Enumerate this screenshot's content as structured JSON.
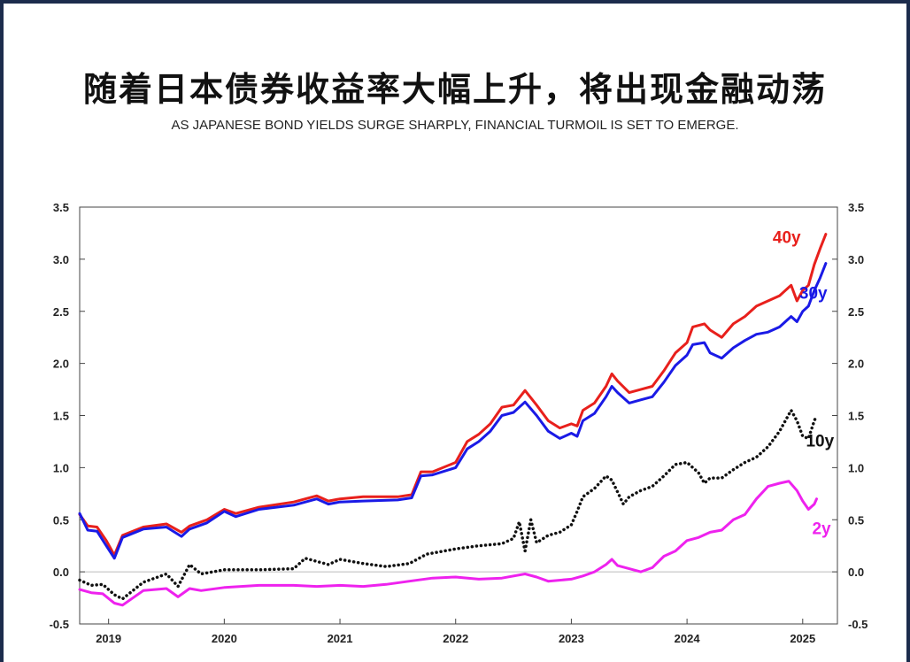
{
  "page": {
    "title": "随着日本债券收益率大幅上升，将出现金融动荡",
    "subtitle": "AS JAPANESE BOND YIELDS SURGE SHARPLY, FINANCIAL TURMOIL IS SET TO EMERGE."
  },
  "chart_data": {
    "type": "line",
    "title": "",
    "xlabel": "",
    "ylabel": "",
    "xlim": [
      2018.75,
      2025.3
    ],
    "ylim": [
      -0.5,
      3.5
    ],
    "x_ticks": [
      2019,
      2020,
      2021,
      2022,
      2023,
      2024,
      2025
    ],
    "x_tick_labels": [
      "2019",
      "2020",
      "2021",
      "2022",
      "2023",
      "2024",
      "2025"
    ],
    "y_ticks": [
      -0.5,
      0.0,
      0.5,
      1.0,
      1.5,
      2.0,
      2.5,
      3.0,
      3.5
    ],
    "y_tick_labels": [
      "-0.5",
      "0.0",
      "0.5",
      "1.0",
      "1.5",
      "2.0",
      "2.5",
      "3.0",
      "3.5"
    ],
    "dual_y_axis": true,
    "zero_line": true,
    "grid": false,
    "legend": "labels at line ends",
    "series": [
      {
        "name": "40y",
        "color": "#e8201c",
        "style": "solid",
        "points": [
          [
            2018.75,
            0.55
          ],
          [
            2018.82,
            0.44
          ],
          [
            2018.9,
            0.43
          ],
          [
            2018.98,
            0.3
          ],
          [
            2019.05,
            0.16
          ],
          [
            2019.12,
            0.35
          ],
          [
            2019.3,
            0.43
          ],
          [
            2019.5,
            0.46
          ],
          [
            2019.63,
            0.38
          ],
          [
            2019.7,
            0.44
          ],
          [
            2019.85,
            0.5
          ],
          [
            2020.0,
            0.6
          ],
          [
            2020.1,
            0.56
          ],
          [
            2020.3,
            0.62
          ],
          [
            2020.6,
            0.67
          ],
          [
            2020.8,
            0.73
          ],
          [
            2020.9,
            0.68
          ],
          [
            2021.0,
            0.7
          ],
          [
            2021.2,
            0.72
          ],
          [
            2021.5,
            0.72
          ],
          [
            2021.62,
            0.74
          ],
          [
            2021.7,
            0.96
          ],
          [
            2021.8,
            0.96
          ],
          [
            2022.0,
            1.05
          ],
          [
            2022.1,
            1.25
          ],
          [
            2022.2,
            1.32
          ],
          [
            2022.3,
            1.42
          ],
          [
            2022.4,
            1.58
          ],
          [
            2022.5,
            1.6
          ],
          [
            2022.6,
            1.74
          ],
          [
            2022.7,
            1.6
          ],
          [
            2022.8,
            1.45
          ],
          [
            2022.9,
            1.38
          ],
          [
            2023.0,
            1.42
          ],
          [
            2023.05,
            1.4
          ],
          [
            2023.1,
            1.55
          ],
          [
            2023.2,
            1.62
          ],
          [
            2023.3,
            1.78
          ],
          [
            2023.35,
            1.9
          ],
          [
            2023.4,
            1.83
          ],
          [
            2023.5,
            1.72
          ],
          [
            2023.6,
            1.75
          ],
          [
            2023.7,
            1.78
          ],
          [
            2023.8,
            1.93
          ],
          [
            2023.9,
            2.1
          ],
          [
            2024.0,
            2.2
          ],
          [
            2024.05,
            2.35
          ],
          [
            2024.15,
            2.38
          ],
          [
            2024.2,
            2.32
          ],
          [
            2024.3,
            2.25
          ],
          [
            2024.4,
            2.38
          ],
          [
            2024.5,
            2.45
          ],
          [
            2024.6,
            2.55
          ],
          [
            2024.7,
            2.6
          ],
          [
            2024.8,
            2.65
          ],
          [
            2024.9,
            2.75
          ],
          [
            2024.95,
            2.6
          ],
          [
            2025.0,
            2.7
          ],
          [
            2025.05,
            2.75
          ],
          [
            2025.1,
            2.95
          ],
          [
            2025.15,
            3.1
          ],
          [
            2025.2,
            3.24
          ]
        ]
      },
      {
        "name": "30y",
        "color": "#1a1ae6",
        "style": "solid",
        "points": [
          [
            2018.75,
            0.56
          ],
          [
            2018.82,
            0.4
          ],
          [
            2018.9,
            0.39
          ],
          [
            2018.98,
            0.25
          ],
          [
            2019.05,
            0.13
          ],
          [
            2019.12,
            0.33
          ],
          [
            2019.3,
            0.41
          ],
          [
            2019.5,
            0.43
          ],
          [
            2019.63,
            0.34
          ],
          [
            2019.7,
            0.41
          ],
          [
            2019.85,
            0.47
          ],
          [
            2020.0,
            0.58
          ],
          [
            2020.1,
            0.53
          ],
          [
            2020.3,
            0.6
          ],
          [
            2020.6,
            0.64
          ],
          [
            2020.8,
            0.7
          ],
          [
            2020.9,
            0.65
          ],
          [
            2021.0,
            0.67
          ],
          [
            2021.2,
            0.68
          ],
          [
            2021.5,
            0.69
          ],
          [
            2021.62,
            0.71
          ],
          [
            2021.7,
            0.92
          ],
          [
            2021.8,
            0.93
          ],
          [
            2022.0,
            1.0
          ],
          [
            2022.1,
            1.18
          ],
          [
            2022.2,
            1.25
          ],
          [
            2022.3,
            1.35
          ],
          [
            2022.4,
            1.5
          ],
          [
            2022.5,
            1.53
          ],
          [
            2022.6,
            1.63
          ],
          [
            2022.7,
            1.5
          ],
          [
            2022.8,
            1.35
          ],
          [
            2022.9,
            1.28
          ],
          [
            2023.0,
            1.33
          ],
          [
            2023.05,
            1.3
          ],
          [
            2023.1,
            1.45
          ],
          [
            2023.2,
            1.52
          ],
          [
            2023.3,
            1.68
          ],
          [
            2023.35,
            1.78
          ],
          [
            2023.4,
            1.72
          ],
          [
            2023.5,
            1.62
          ],
          [
            2023.6,
            1.65
          ],
          [
            2023.7,
            1.68
          ],
          [
            2023.8,
            1.82
          ],
          [
            2023.9,
            1.98
          ],
          [
            2024.0,
            2.08
          ],
          [
            2024.05,
            2.18
          ],
          [
            2024.15,
            2.2
          ],
          [
            2024.2,
            2.1
          ],
          [
            2024.3,
            2.05
          ],
          [
            2024.4,
            2.15
          ],
          [
            2024.5,
            2.22
          ],
          [
            2024.6,
            2.28
          ],
          [
            2024.7,
            2.3
          ],
          [
            2024.8,
            2.35
          ],
          [
            2024.9,
            2.45
          ],
          [
            2024.95,
            2.4
          ],
          [
            2025.0,
            2.5
          ],
          [
            2025.05,
            2.55
          ],
          [
            2025.1,
            2.7
          ],
          [
            2025.15,
            2.82
          ],
          [
            2025.2,
            2.96
          ]
        ]
      },
      {
        "name": "10y",
        "color": "#111111",
        "style": "dotted",
        "points": [
          [
            2018.75,
            -0.08
          ],
          [
            2018.85,
            -0.13
          ],
          [
            2018.95,
            -0.12
          ],
          [
            2019.05,
            -0.22
          ],
          [
            2019.12,
            -0.26
          ],
          [
            2019.3,
            -0.1
          ],
          [
            2019.5,
            -0.02
          ],
          [
            2019.6,
            -0.14
          ],
          [
            2019.7,
            0.07
          ],
          [
            2019.8,
            -0.02
          ],
          [
            2020.0,
            0.02
          ],
          [
            2020.3,
            0.02
          ],
          [
            2020.6,
            0.03
          ],
          [
            2020.7,
            0.13
          ],
          [
            2020.9,
            0.07
          ],
          [
            2021.0,
            0.12
          ],
          [
            2021.2,
            0.08
          ],
          [
            2021.4,
            0.05
          ],
          [
            2021.6,
            0.08
          ],
          [
            2021.75,
            0.17
          ],
          [
            2021.9,
            0.2
          ],
          [
            2022.0,
            0.22
          ],
          [
            2022.2,
            0.25
          ],
          [
            2022.4,
            0.27
          ],
          [
            2022.5,
            0.32
          ],
          [
            2022.55,
            0.48
          ],
          [
            2022.6,
            0.2
          ],
          [
            2022.65,
            0.5
          ],
          [
            2022.7,
            0.28
          ],
          [
            2022.8,
            0.35
          ],
          [
            2022.9,
            0.38
          ],
          [
            2023.0,
            0.45
          ],
          [
            2023.05,
            0.58
          ],
          [
            2023.1,
            0.72
          ],
          [
            2023.2,
            0.8
          ],
          [
            2023.3,
            0.92
          ],
          [
            2023.35,
            0.88
          ],
          [
            2023.45,
            0.65
          ],
          [
            2023.5,
            0.72
          ],
          [
            2023.6,
            0.78
          ],
          [
            2023.7,
            0.82
          ],
          [
            2023.8,
            0.92
          ],
          [
            2023.9,
            1.03
          ],
          [
            2024.0,
            1.05
          ],
          [
            2024.1,
            0.95
          ],
          [
            2024.15,
            0.85
          ],
          [
            2024.2,
            0.9
          ],
          [
            2024.3,
            0.9
          ],
          [
            2024.4,
            0.98
          ],
          [
            2024.5,
            1.05
          ],
          [
            2024.6,
            1.1
          ],
          [
            2024.7,
            1.2
          ],
          [
            2024.8,
            1.35
          ],
          [
            2024.9,
            1.55
          ],
          [
            2024.95,
            1.45
          ],
          [
            2025.0,
            1.3
          ],
          [
            2025.05,
            1.28
          ],
          [
            2025.1,
            1.45
          ],
          [
            2025.12,
            1.5
          ]
        ]
      },
      {
        "name": "2y",
        "color": "#ee22ee",
        "style": "solid",
        "points": [
          [
            2018.75,
            -0.17
          ],
          [
            2018.85,
            -0.2
          ],
          [
            2018.95,
            -0.21
          ],
          [
            2019.05,
            -0.3
          ],
          [
            2019.12,
            -0.32
          ],
          [
            2019.3,
            -0.18
          ],
          [
            2019.5,
            -0.16
          ],
          [
            2019.6,
            -0.24
          ],
          [
            2019.7,
            -0.16
          ],
          [
            2019.8,
            -0.18
          ],
          [
            2020.0,
            -0.15
          ],
          [
            2020.3,
            -0.13
          ],
          [
            2020.6,
            -0.13
          ],
          [
            2020.8,
            -0.14
          ],
          [
            2021.0,
            -0.13
          ],
          [
            2021.2,
            -0.14
          ],
          [
            2021.4,
            -0.12
          ],
          [
            2021.6,
            -0.09
          ],
          [
            2021.8,
            -0.06
          ],
          [
            2022.0,
            -0.05
          ],
          [
            2022.2,
            -0.07
          ],
          [
            2022.4,
            -0.06
          ],
          [
            2022.6,
            -0.02
          ],
          [
            2022.7,
            -0.05
          ],
          [
            2022.8,
            -0.09
          ],
          [
            2023.0,
            -0.07
          ],
          [
            2023.1,
            -0.04
          ],
          [
            2023.2,
            0.0
          ],
          [
            2023.3,
            0.07
          ],
          [
            2023.35,
            0.12
          ],
          [
            2023.4,
            0.06
          ],
          [
            2023.5,
            0.03
          ],
          [
            2023.6,
            0.0
          ],
          [
            2023.7,
            0.04
          ],
          [
            2023.8,
            0.15
          ],
          [
            2023.9,
            0.2
          ],
          [
            2024.0,
            0.3
          ],
          [
            2024.1,
            0.33
          ],
          [
            2024.2,
            0.38
          ],
          [
            2024.3,
            0.4
          ],
          [
            2024.4,
            0.5
          ],
          [
            2024.5,
            0.55
          ],
          [
            2024.6,
            0.7
          ],
          [
            2024.7,
            0.82
          ],
          [
            2024.8,
            0.85
          ],
          [
            2024.88,
            0.87
          ],
          [
            2024.95,
            0.78
          ],
          [
            2025.0,
            0.68
          ],
          [
            2025.05,
            0.6
          ],
          [
            2025.1,
            0.65
          ],
          [
            2025.12,
            0.7
          ]
        ]
      }
    ]
  }
}
